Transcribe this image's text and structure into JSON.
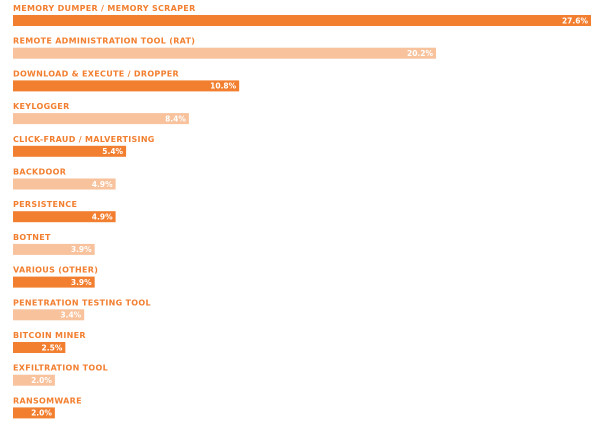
{
  "chart_data": {
    "type": "bar",
    "orientation": "horizontal",
    "categories": [
      "MEMORY DUMPER / MEMORY SCRAPER",
      "REMOTE ADMINISTRATION TOOL (RAT)",
      "DOWNLOAD & EXECUTE / DROPPER",
      "KEYLOGGER",
      "CLICK-FRAUD / MALVERTISING",
      "BACKDOOR",
      "PERSISTENCE",
      "BOTNET",
      "VARIOUS (OTHER)",
      "PENETRATION TESTING TOOL",
      "BITCOIN MINER",
      "EXFILTRATION TOOL",
      "RANSOMWARE"
    ],
    "values": [
      27.6,
      20.2,
      10.8,
      8.4,
      5.4,
      4.9,
      4.9,
      3.9,
      3.9,
      3.4,
      2.5,
      2.0,
      2.0
    ],
    "value_labels": [
      "27.6%",
      "20.2%",
      "10.8%",
      "8.4%",
      "5.4%",
      "4.9%",
      "4.9%",
      "3.9%",
      "3.9%",
      "3.4%",
      "2.5%",
      "2.0%",
      "2.0%"
    ],
    "xlim": [
      0,
      27.6
    ],
    "grid": false,
    "legend": "none",
    "title": "",
    "xlabel": "",
    "ylabel": ""
  },
  "colors": {
    "bar_dark": "#f27f30",
    "bar_light": "#f7c29c",
    "label": "#f27f30",
    "value_text": "#ffffff"
  }
}
